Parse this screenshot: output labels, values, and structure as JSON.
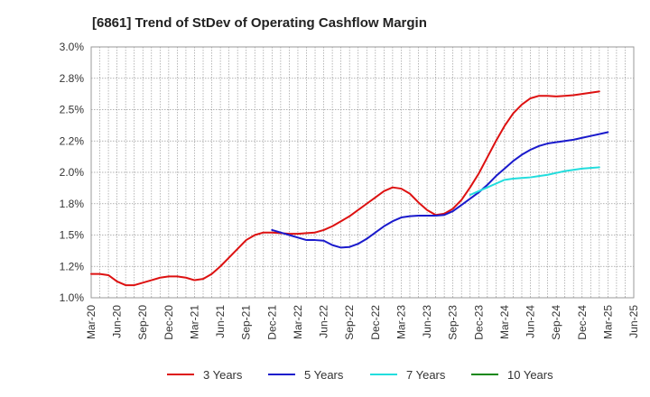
{
  "chart_data": {
    "type": "line",
    "title": "[6861]  Trend of StDev of Operating Cashflow Margin",
    "xlabel": "",
    "ylabel": "",
    "ylim": [
      1.0,
      3.0
    ],
    "y_ticks": [
      "1.0%",
      "1.2%",
      "1.5%",
      "1.8%",
      "2.0%",
      "2.2%",
      "2.5%",
      "2.8%",
      "3.0%"
    ],
    "y_tick_values": [
      1.0,
      1.25,
      1.5,
      1.75,
      2.0,
      2.25,
      2.5,
      2.75,
      3.0
    ],
    "x_ticks": [
      "Mar-20",
      "Jun-20",
      "Sep-20",
      "Dec-20",
      "Mar-21",
      "Jun-21",
      "Sep-21",
      "Dec-21",
      "Mar-22",
      "Jun-22",
      "Sep-22",
      "Dec-22",
      "Mar-23",
      "Jun-23",
      "Sep-23",
      "Dec-23",
      "Mar-24",
      "Jun-24",
      "Sep-24",
      "Dec-24",
      "Mar-25",
      "Jun-25"
    ],
    "grid": true,
    "legend_position": "bottom",
    "series": [
      {
        "name": "3 Years",
        "color": "#dd1111",
        "start_index": 0,
        "values": [
          1.19,
          1.19,
          1.18,
          1.13,
          1.1,
          1.1,
          1.12,
          1.14,
          1.16,
          1.17,
          1.17,
          1.16,
          1.14,
          1.15,
          1.19,
          1.25,
          1.32,
          1.39,
          1.46,
          1.5,
          1.52,
          1.52,
          1.515,
          1.51,
          1.51,
          1.515,
          1.52,
          1.54,
          1.57,
          1.61,
          1.65,
          1.7,
          1.75,
          1.8,
          1.85,
          1.88,
          1.87,
          1.83,
          1.76,
          1.7,
          1.66,
          1.67,
          1.71,
          1.78,
          1.88,
          1.99,
          2.12,
          2.25,
          2.37,
          2.47,
          2.54,
          2.59,
          2.61,
          2.61,
          2.605,
          2.61,
          2.615,
          2.625,
          2.635,
          2.645
        ]
      },
      {
        "name": "5 Years",
        "color": "#1a1acc",
        "start_index": 21,
        "values": [
          1.54,
          1.52,
          1.5,
          1.48,
          1.46,
          1.46,
          1.455,
          1.42,
          1.4,
          1.405,
          1.43,
          1.47,
          1.52,
          1.57,
          1.61,
          1.64,
          1.65,
          1.655,
          1.655,
          1.655,
          1.66,
          1.69,
          1.74,
          1.79,
          1.84,
          1.9,
          1.97,
          2.03,
          2.09,
          2.14,
          2.18,
          2.21,
          2.23,
          2.24,
          2.25,
          2.26,
          2.275,
          2.29,
          2.305,
          2.32
        ]
      },
      {
        "name": "7 Years",
        "color": "#22dddd",
        "start_index": 44,
        "values": [
          1.82,
          1.85,
          1.88,
          1.91,
          1.94,
          1.95,
          1.955,
          1.96,
          1.97,
          1.98,
          1.995,
          2.01,
          2.02,
          2.03,
          2.035,
          2.04
        ]
      },
      {
        "name": "10 Years",
        "color": "#118811",
        "start_index": 0,
        "values": []
      }
    ]
  }
}
